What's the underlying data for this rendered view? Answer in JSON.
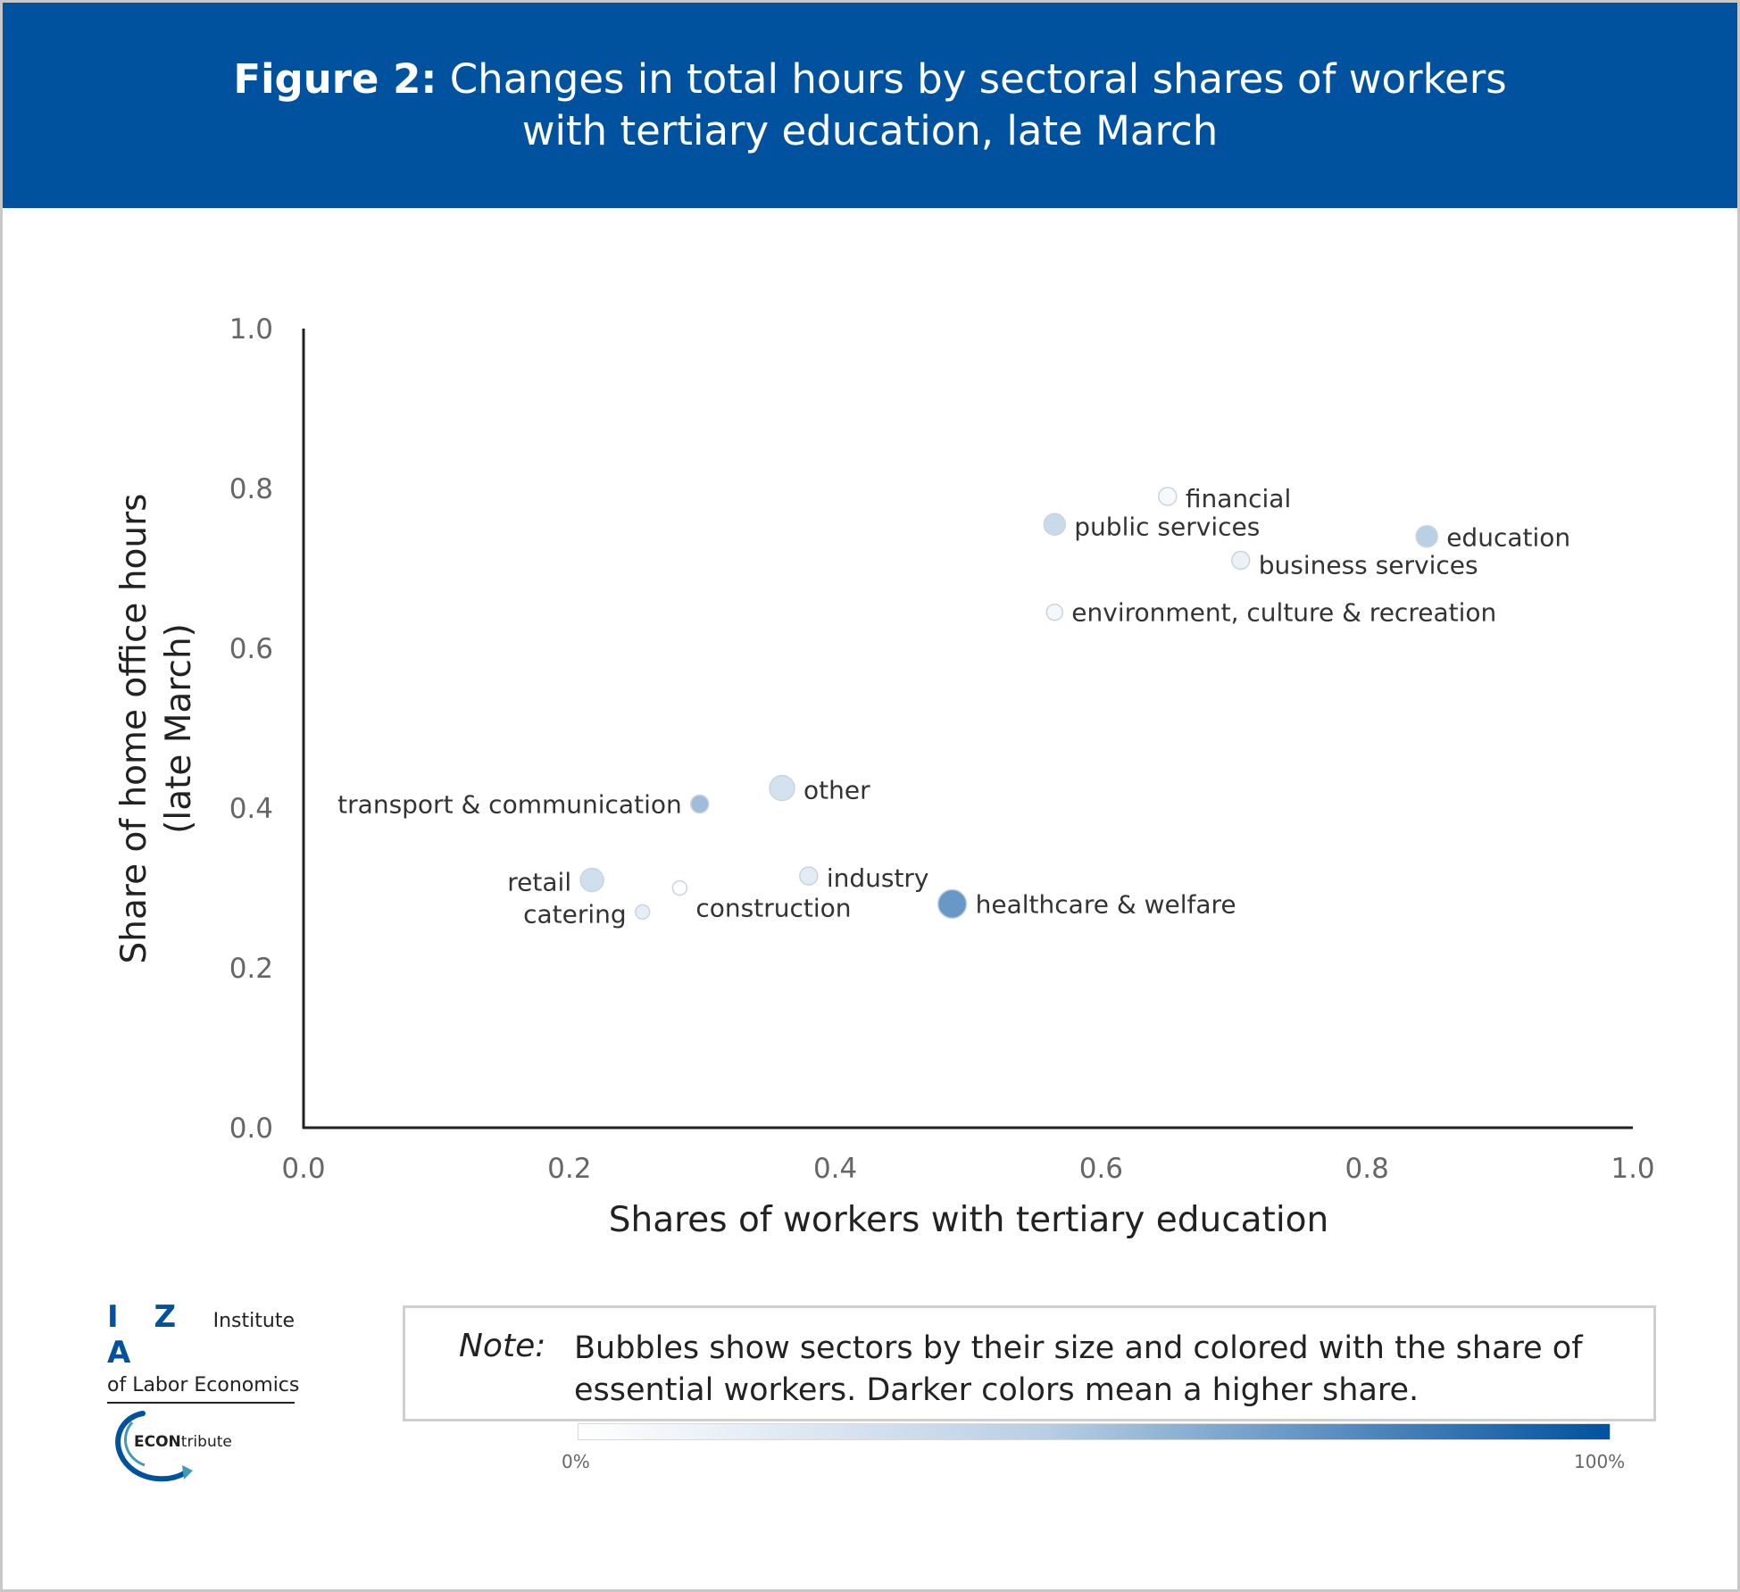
{
  "header": {
    "title_bold": "Figure 2:",
    "title_line1": "Changes in total hours by sectoral shares of workers",
    "title_line2": "with tertiary education, late March"
  },
  "chart_data": {
    "type": "scatter",
    "title": "Figure 2: Changes in total hours by sectoral shares of workers with tertiary education, late March",
    "xlabel": "Shares of workers with tertiary education",
    "ylabel_line1": "Share of home office hours",
    "ylabel_line2": "(late March)",
    "xlim": [
      0.0,
      1.0
    ],
    "ylim": [
      0.0,
      1.0
    ],
    "x_ticks": [
      "0.0",
      "0.2",
      "0.4",
      "0.6",
      "0.8",
      "1.0"
    ],
    "y_ticks": [
      "0.0",
      "0.2",
      "0.4",
      "0.6",
      "0.8",
      "1.0"
    ],
    "grid": false,
    "points": [
      {
        "label": "financial",
        "x": 0.65,
        "y": 0.79,
        "size": 10,
        "essential_share": 0.04
      },
      {
        "label": "public services",
        "x": 0.565,
        "y": 0.755,
        "size": 12,
        "essential_share": 0.25
      },
      {
        "label": "education",
        "x": 0.845,
        "y": 0.74,
        "size": 12,
        "essential_share": 0.32
      },
      {
        "label": "business services",
        "x": 0.705,
        "y": 0.71,
        "size": 10,
        "essential_share": 0.09
      },
      {
        "label": "environment, culture & recreation",
        "x": 0.565,
        "y": 0.645,
        "size": 9,
        "essential_share": 0.05
      },
      {
        "label": "other",
        "x": 0.36,
        "y": 0.425,
        "size": 14,
        "essential_share": 0.2
      },
      {
        "label": "transport & communication",
        "x": 0.298,
        "y": 0.405,
        "size": 10,
        "essential_share": 0.45
      },
      {
        "label": "industry",
        "x": 0.38,
        "y": 0.315,
        "size": 10,
        "essential_share": 0.13
      },
      {
        "label": "retail",
        "x": 0.217,
        "y": 0.31,
        "size": 13,
        "essential_share": 0.22
      },
      {
        "label": "construction",
        "x": 0.283,
        "y": 0.3,
        "size": 8,
        "essential_share": 0.0
      },
      {
        "label": "healthcare & welfare",
        "x": 0.488,
        "y": 0.28,
        "size": 16,
        "essential_share": 0.7
      },
      {
        "label": "catering",
        "x": 0.255,
        "y": 0.27,
        "size": 8,
        "essential_share": 0.12
      }
    ]
  },
  "logos": {
    "iza_letters": "I Z A",
    "iza_word": "Institute",
    "iza_sub": "of Labor Economics",
    "econ_bold": "ECON",
    "econ_rest": "tribute"
  },
  "note": {
    "label": "Note:",
    "text": "Bubbles show sectors by their size and colored with the share of essential workers. Darker colors mean a higher share.",
    "scale_min": "0%",
    "scale_max": "100%"
  },
  "colors": {
    "brand_blue": "#00529f",
    "bubble_light": "#ffffff",
    "bubble_dark": "#00529f"
  }
}
